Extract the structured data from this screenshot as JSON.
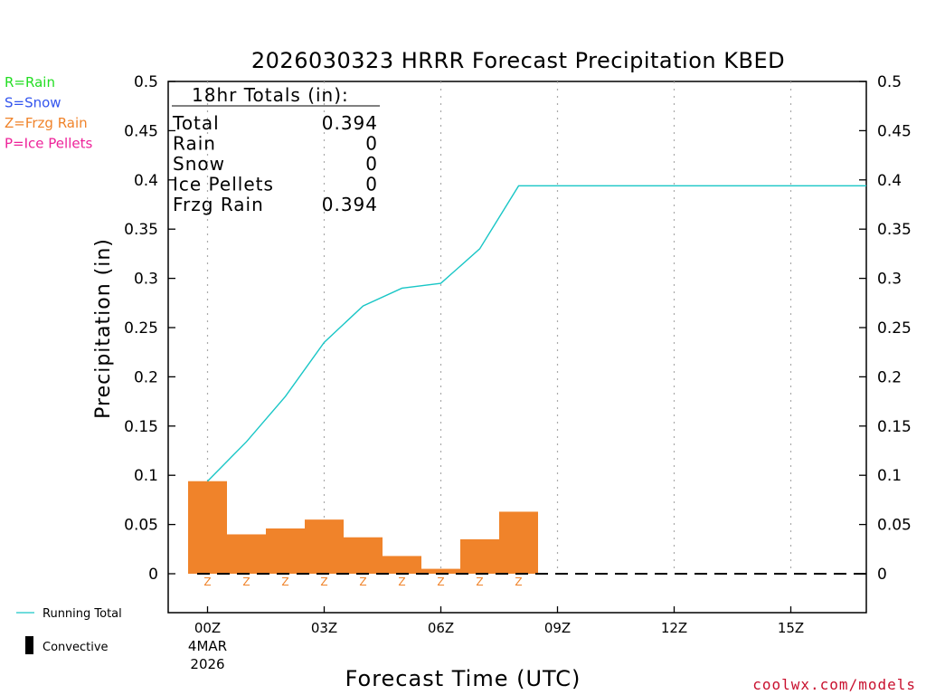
{
  "chart_data": {
    "type": "bar",
    "title": "2026030323 HRRR Forecast Precipitation KBED",
    "ylabel": "Precipitation (in)",
    "xlabel": "Forecast Time (UTC)",
    "ylim": [
      0,
      0.5
    ],
    "yticks": [
      "0",
      "0.05",
      "0.1",
      "0.15",
      "0.2",
      "0.25",
      "0.3",
      "0.35",
      "0.4",
      "0.45",
      "0.5"
    ],
    "xticks": [
      {
        "hour": 0,
        "label": "00Z",
        "sub1": "4MAR",
        "sub2": "2026"
      },
      {
        "hour": 3,
        "label": "03Z"
      },
      {
        "hour": 6,
        "label": "06Z"
      },
      {
        "hour": 9,
        "label": "09Z"
      },
      {
        "hour": 12,
        "label": "12Z"
      },
      {
        "hour": 15,
        "label": "15Z"
      }
    ],
    "xrange_hours": [
      -1,
      17.3
    ],
    "hourly": [
      {
        "hour": 0,
        "value": 0.094,
        "ptype": "Z"
      },
      {
        "hour": 1,
        "value": 0.04,
        "ptype": "Z"
      },
      {
        "hour": 2,
        "value": 0.046,
        "ptype": "Z"
      },
      {
        "hour": 3,
        "value": 0.055,
        "ptype": "Z"
      },
      {
        "hour": 4,
        "value": 0.037,
        "ptype": "Z"
      },
      {
        "hour": 5,
        "value": 0.018,
        "ptype": "Z"
      },
      {
        "hour": 6,
        "value": 0.005,
        "ptype": "Z"
      },
      {
        "hour": 7,
        "value": 0.035,
        "ptype": "Z"
      },
      {
        "hour": 8,
        "value": 0.063,
        "ptype": "Z"
      }
    ],
    "running_total": {
      "x": [
        0,
        1,
        2,
        3,
        4,
        5,
        6,
        7,
        8,
        9,
        10,
        11,
        12,
        13,
        14,
        15,
        16,
        17.3
      ],
      "y": [
        0.094,
        0.134,
        0.18,
        0.235,
        0.272,
        0.29,
        0.295,
        0.33,
        0.394,
        0.394,
        0.394,
        0.394,
        0.394,
        0.394,
        0.394,
        0.394,
        0.394,
        0.394
      ]
    },
    "totals": {
      "header": "18hr Totals (in):",
      "rows": [
        {
          "label": "Total",
          "value": "0.394"
        },
        {
          "label": "Rain",
          "value": "0"
        },
        {
          "label": "Snow",
          "value": "0"
        },
        {
          "label": "Ice Pellets",
          "value": "0"
        },
        {
          "label": "Frzg Rain",
          "value": "0.394"
        }
      ]
    },
    "ptype_legend": [
      {
        "text": "R=Rain",
        "color": "#22dd22"
      },
      {
        "text": "S=Snow",
        "color": "#3355ee"
      },
      {
        "text": "Z=Frzg Rain",
        "color": "#f0832a"
      },
      {
        "text": "P=Ice Pellets",
        "color": "#ee2299"
      }
    ],
    "series_legend": {
      "running_total": "Running Total",
      "convective": "Convective"
    },
    "colors": {
      "bar": "#f0832a",
      "line": "#19c6c6",
      "grid": "#aaaaaa"
    }
  },
  "credit": "coolwx.com/models"
}
